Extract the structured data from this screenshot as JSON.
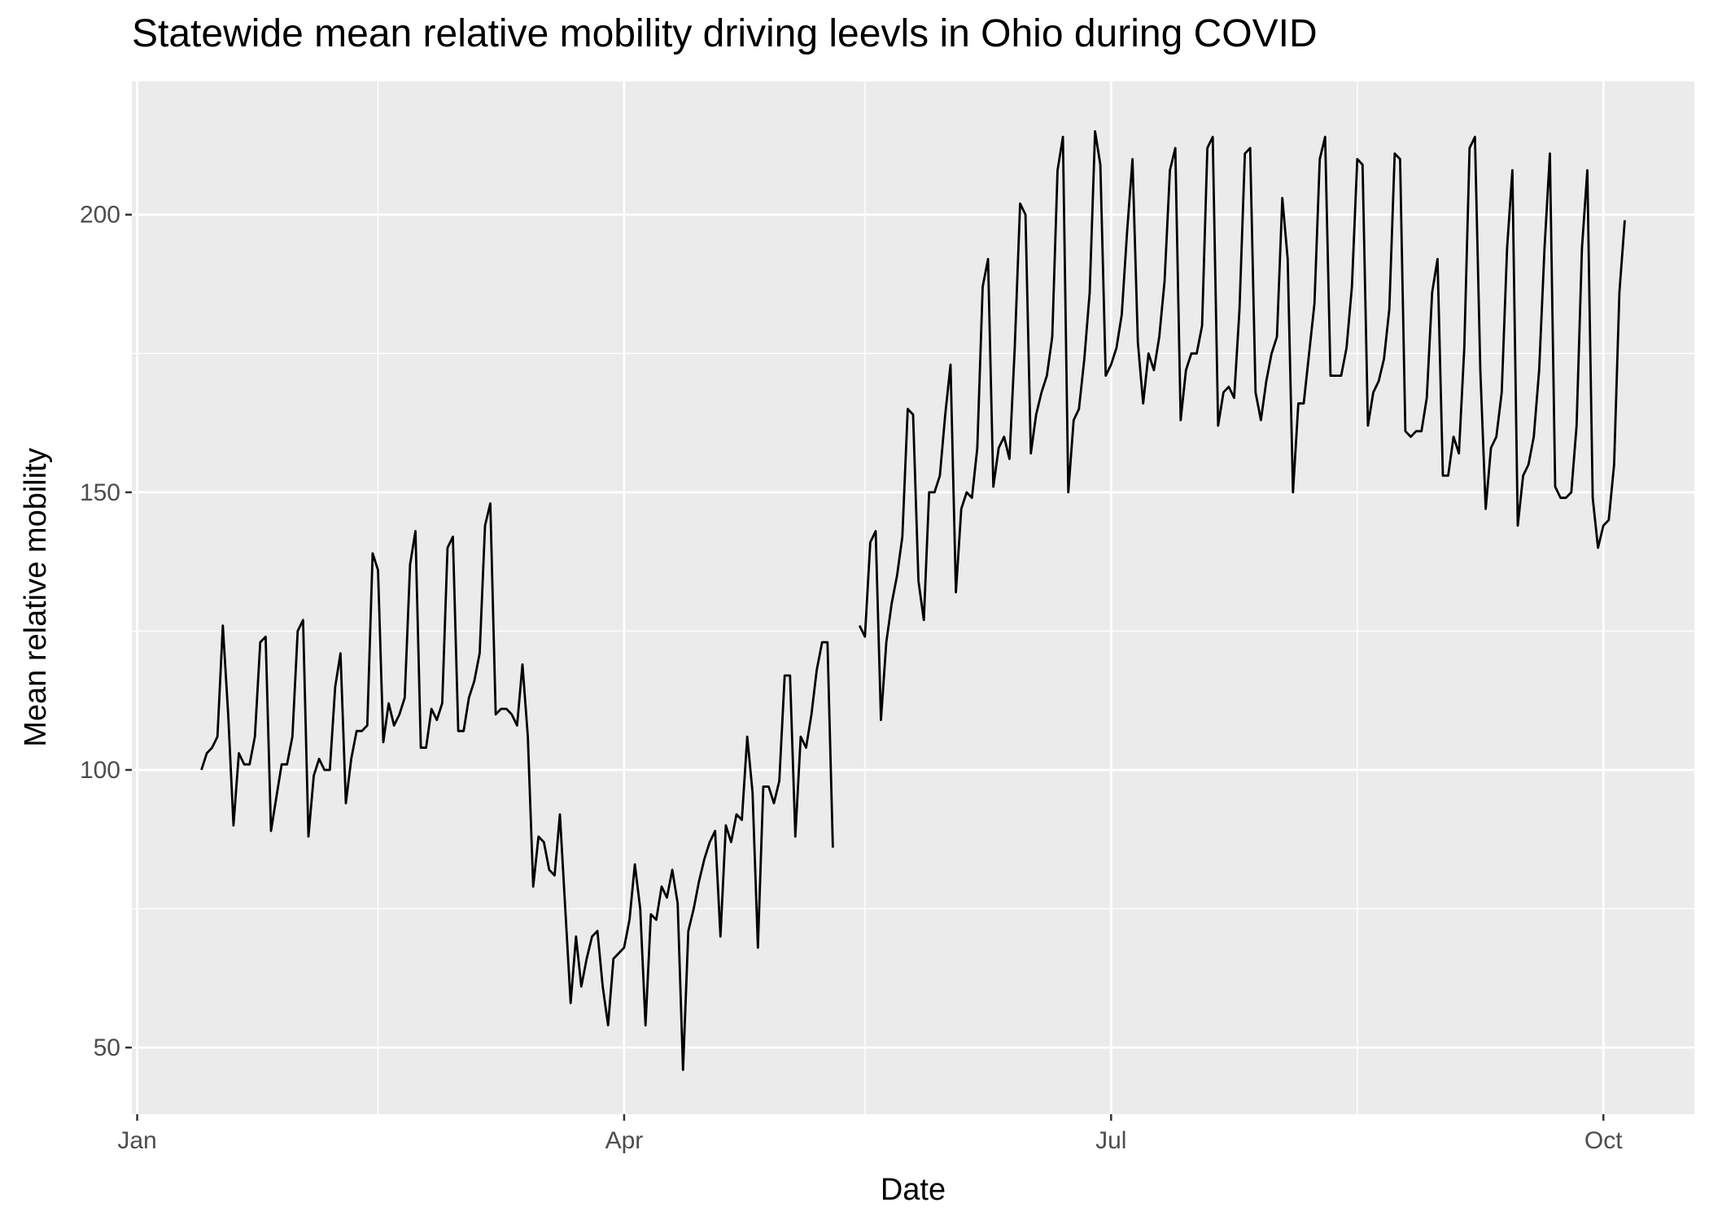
{
  "chart_data": {
    "type": "line",
    "title": "Statewide mean relative mobility driving leevls in Ohio during COVID",
    "xlabel": "Date",
    "ylabel": "Mean relative mobility",
    "x_ticks": [
      "Jan",
      "Apr",
      "Jul",
      "Oct"
    ],
    "y_ticks": [
      50,
      100,
      150,
      200
    ],
    "xlim": [
      "2019-12-31",
      "2020-10-18"
    ],
    "ylim": [
      38,
      224
    ],
    "grid": true,
    "legend": "none",
    "colors": {
      "panel": "#ebebeb",
      "grid": "#ffffff",
      "line": "#000000"
    },
    "series": [
      {
        "segments": [
          {
            "start": "2020-01-13",
            "values": [
              100,
              103,
              104,
              106,
              126,
              110,
              90,
              103,
              101,
              101,
              106,
              123,
              124,
              89,
              95,
              101,
              101,
              106,
              125,
              127,
              88,
              99,
              102,
              100,
              100,
              115,
              121,
              94,
              102,
              107,
              107,
              108,
              139,
              136,
              105,
              112,
              108,
              110,
              113,
              137,
              143,
              104,
              104,
              111,
              109,
              112,
              140,
              142,
              107,
              107,
              113,
              116,
              121,
              144,
              148,
              110,
              111,
              111,
              110,
              108,
              119,
              106,
              79,
              88,
              87,
              82,
              81,
              92,
              75,
              58,
              70,
              61,
              66,
              70,
              71,
              61,
              54,
              66,
              67,
              68,
              73,
              83,
              75,
              54,
              74,
              73,
              79,
              77,
              82,
              76,
              46,
              71,
              75,
              80,
              84,
              87,
              89,
              70,
              90,
              87,
              92,
              91,
              106,
              96,
              68,
              97,
              97,
              94,
              98,
              117,
              117,
              88,
              106,
              104,
              110,
              118,
              123,
              123,
              86
            ]
          },
          {
            "start": "2020-05-15",
            "values": [
              126,
              124,
              141,
              143,
              109,
              123,
              130,
              135,
              142,
              165,
              164,
              134,
              127,
              150,
              150,
              153,
              164,
              173,
              132,
              147,
              150,
              149,
              158,
              187,
              192,
              151,
              158,
              160,
              156,
              176,
              202,
              200,
              157,
              164,
              168,
              171,
              178,
              208,
              214,
              150,
              163,
              165,
              174,
              186,
              215,
              209,
              171,
              173,
              176,
              182,
              197,
              210,
              177,
              166,
              175,
              172,
              178,
              188,
              208,
              212,
              163,
              172,
              175,
              175,
              180,
              212,
              214,
              162,
              168,
              169,
              167,
              183,
              211,
              212,
              168,
              163,
              170,
              175,
              178,
              203,
              192,
              150,
              166,
              166,
              175,
              184,
              210,
              214,
              171,
              171,
              171,
              176,
              187,
              210,
              209,
              162,
              168,
              170,
              174,
              183,
              211,
              210,
              161,
              160,
              161,
              161,
              167,
              186,
              192,
              153,
              153,
              160,
              157,
              176,
              212,
              214,
              172,
              147,
              158,
              160,
              168,
              194,
              208,
              144,
              153,
              155,
              160,
              172,
              194,
              211,
              151,
              149,
              149,
              150,
              162,
              194,
              208,
              149,
              140,
              144,
              145,
              155,
              186,
              199
            ]
          }
        ]
      }
    ]
  }
}
